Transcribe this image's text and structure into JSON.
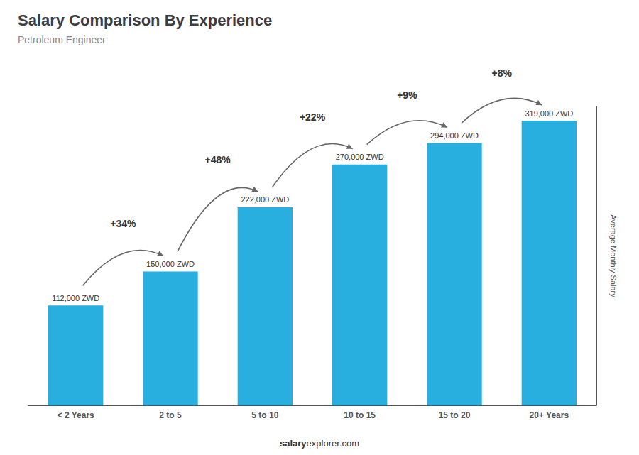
{
  "chart_data": {
    "type": "bar",
    "title": "Salary Comparison By Experience",
    "subtitle": "Petroleum Engineer",
    "y_label": "Average Monthly Salary",
    "categories": [
      "< 2 Years",
      "2 to 5",
      "5 to 10",
      "10 to 15",
      "15 to 20",
      "20+ Years"
    ],
    "values": [
      112000,
      150000,
      222000,
      270000,
      294000,
      319000
    ],
    "value_labels": [
      "112,000 ZWD",
      "150,000 ZWD",
      "222,000 ZWD",
      "270,000 ZWD",
      "294,000 ZWD",
      "319,000 ZWD"
    ],
    "data_labels": true,
    "annotations": [
      "+34%",
      "+48%",
      "+22%",
      "+9%",
      "+8%"
    ],
    "color": "#29aee0",
    "ylim": [
      0,
      334950
    ],
    "tick_labels": "x",
    "grid": false,
    "footer": [
      "salary",
      "explorer.com"
    ]
  }
}
